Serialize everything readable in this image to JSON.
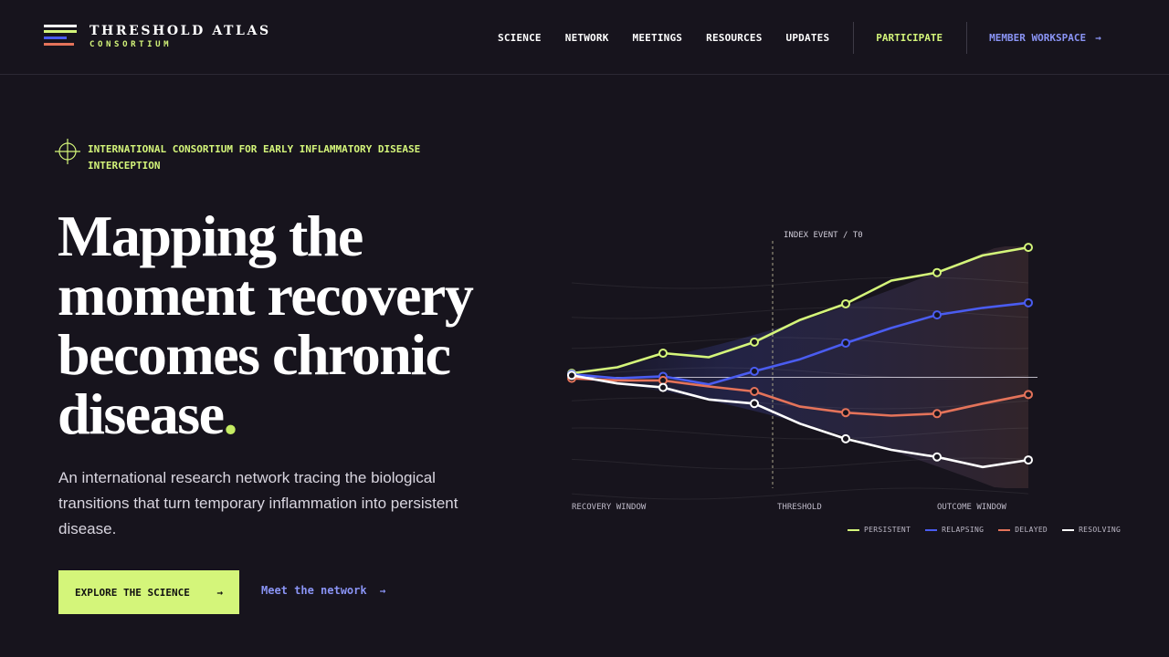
{
  "brand": {
    "name": "THRESHOLD ATLAS",
    "subtitle": "CONSORTIUM"
  },
  "nav": {
    "items": [
      "SCIENCE",
      "NETWORK",
      "MEETINGS",
      "RESOURCES",
      "UPDATES"
    ],
    "participate": "PARTICIPATE",
    "workspace": "MEMBER WORKSPACE",
    "workspace_arrow": "→"
  },
  "hero": {
    "eyebrow": "INTERNATIONAL CONSORTIUM FOR EARLY INFLAMMATORY DISEASE INTERCEPTION",
    "headline_line1": "Mapping the",
    "headline_line2": "moment recovery",
    "headline_line3": "becomes chronic",
    "headline_line4": "disease",
    "headline_dot": ".",
    "lede": "An international research network tracing the biological transitions that turn temporary inflammation into persistent disease.",
    "primary_cta": "EXPLORE THE SCIENCE",
    "primary_cta_arrow": "→",
    "secondary_cta": "Meet the network",
    "secondary_cta_arrow": "→"
  },
  "colors": {
    "background": "#17141d",
    "accent_lime": "#d4f57a",
    "accent_blue": "#4a5cf0",
    "accent_coral": "#e4735a",
    "link_blue": "#8a94f5"
  },
  "icons": {
    "eyebrow": "crosshair-icon",
    "arrow": "arrow-right-icon"
  },
  "chart_data": {
    "type": "line",
    "title": "",
    "xlabel": "",
    "ylabel": "",
    "marker_label": "INDEX EVENT / T0",
    "marker_index": 4.4,
    "phase_labels": [
      "RECOVERY WINDOW",
      "THRESHOLD",
      "OUTCOME WINDOW"
    ],
    "x": [
      0,
      1,
      2,
      3,
      4,
      5,
      6,
      7,
      8,
      9,
      10
    ],
    "ylim": [
      -1.1,
      1.3
    ],
    "baseline": 0,
    "series": [
      {
        "name": "PERSISTENT",
        "color": "#d4f57a",
        "values": [
          0.04,
          0.1,
          0.24,
          0.2,
          0.35,
          0.57,
          0.73,
          0.96,
          1.04,
          1.21,
          1.29
        ],
        "markers": [
          0,
          2,
          4,
          6,
          8,
          10
        ]
      },
      {
        "name": "RELAPSING",
        "color": "#4a5cf0",
        "values": [
          0.03,
          -0.01,
          0.01,
          -0.07,
          0.06,
          0.18,
          0.34,
          0.49,
          0.62,
          0.69,
          0.74
        ],
        "markers": [
          0,
          2,
          4,
          6,
          8,
          10
        ]
      },
      {
        "name": "DELAYED",
        "color": "#e4735a",
        "values": [
          -0.01,
          -0.03,
          -0.03,
          -0.09,
          -0.14,
          -0.29,
          -0.35,
          -0.38,
          -0.36,
          -0.26,
          -0.17
        ],
        "markers": [
          0,
          2,
          4,
          6,
          8,
          10
        ]
      },
      {
        "name": "RESOLVING",
        "color": "#ffffff",
        "values": [
          0.02,
          -0.06,
          -0.1,
          -0.22,
          -0.26,
          -0.46,
          -0.61,
          -0.72,
          -0.79,
          -0.89,
          -0.82
        ],
        "markers": [
          0,
          2,
          4,
          6,
          8,
          10
        ]
      }
    ],
    "grid": true,
    "legend_position": "bottom-right"
  }
}
